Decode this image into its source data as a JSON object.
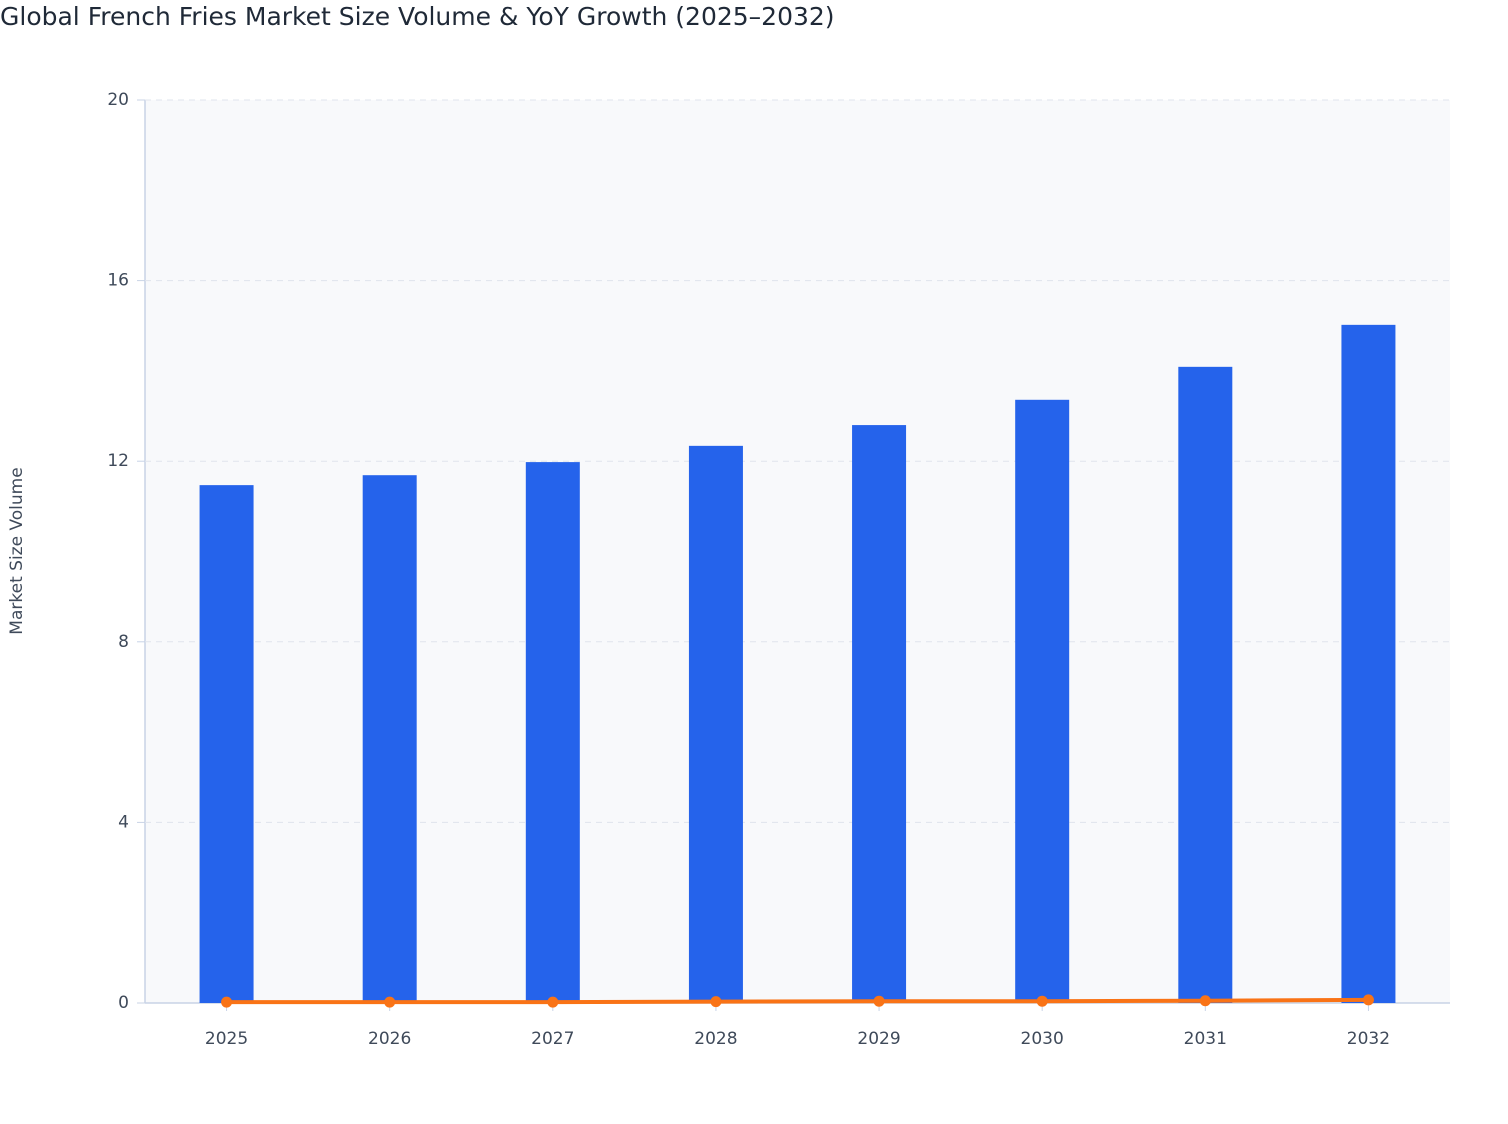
{
  "chart_data": {
    "type": "bar",
    "title": "Global French Fries Market Size Volume & YoY Growth (2025–2032)",
    "y_label": "Market Size Volume",
    "categories": [
      "2025",
      "2026",
      "2027",
      "2028",
      "2029",
      "2030",
      "2031",
      "2032"
    ],
    "series": [
      {
        "type": "bar",
        "color": "#2563eb",
        "values": [
          11.47,
          11.69,
          11.98,
          12.34,
          12.8,
          13.36,
          14.09,
          15.02
        ]
      },
      {
        "type": "line",
        "color": "#f97316",
        "values": [
          0.02,
          0.02,
          0.02,
          0.03,
          0.04,
          0.04,
          0.05,
          0.07
        ]
      }
    ],
    "ylim": [
      0,
      20
    ],
    "yticks": [
      0,
      4,
      8,
      12,
      16,
      20
    ],
    "grid": true
  }
}
